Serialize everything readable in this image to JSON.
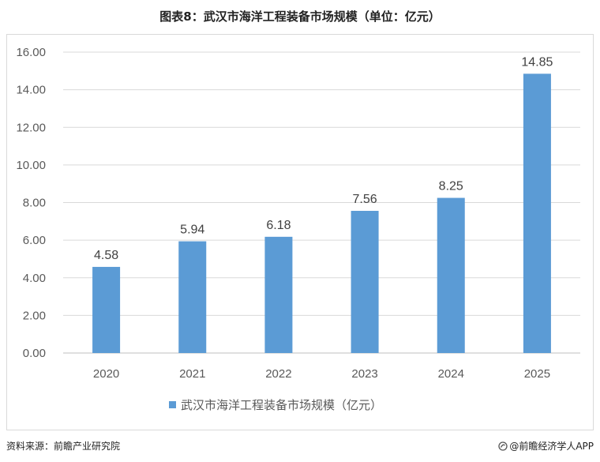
{
  "title": "图表8：武汉市海洋工程装备市场规模（单位：亿元）",
  "source": "资料来源：前瞻产业研究院",
  "credit": "@前瞻经济学人APP",
  "chart_data": {
    "type": "bar",
    "categories": [
      "2020",
      "2021",
      "2022",
      "2023",
      "2024",
      "2025"
    ],
    "series": [
      {
        "name": "武汉市海洋工程装备市场规模（亿元）",
        "values": [
          4.58,
          5.94,
          6.18,
          7.56,
          8.25,
          14.85
        ],
        "value_labels": [
          "4.58",
          "5.94",
          "6.18",
          "7.56",
          "8.25",
          "14.85"
        ],
        "color": "#5b9bd5"
      }
    ],
    "ylim": [
      0,
      16
    ],
    "yticks": [
      0,
      2,
      4,
      6,
      8,
      10,
      12,
      14,
      16
    ],
    "ytick_labels": [
      "0.00",
      "2.00",
      "4.00",
      "6.00",
      "8.00",
      "10.00",
      "12.00",
      "14.00",
      "16.00"
    ],
    "grid": true,
    "legend_position": "bottom",
    "xlabel": "",
    "ylabel": ""
  }
}
